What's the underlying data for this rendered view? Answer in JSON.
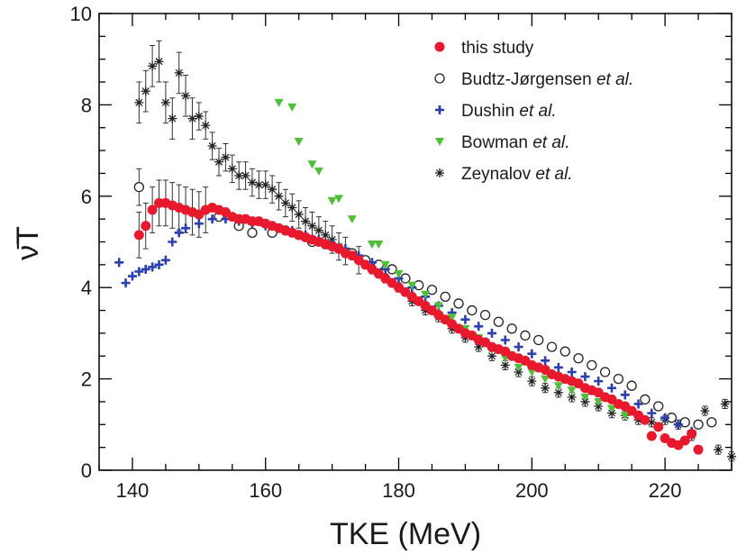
{
  "chart_data": {
    "type": "scatter",
    "xlabel": "TKE (MeV)",
    "ylabel": "ν̄T",
    "xlim": [
      135,
      230
    ],
    "ylim": [
      0,
      10
    ],
    "x_ticks": [
      "140",
      "160",
      "180",
      "200",
      "220"
    ],
    "y_ticks": [
      "0",
      "2",
      "4",
      "6",
      "8",
      "10"
    ],
    "legend_position": "top-right",
    "series": [
      {
        "name": "this study",
        "legend_parts": [
          "this study",
          ""
        ],
        "marker": "filled-circle",
        "color": "#e8192c",
        "x": [
          141,
          142,
          143,
          144,
          145,
          146,
          147,
          148,
          149,
          150,
          151,
          152,
          153,
          154,
          155,
          156,
          157,
          158,
          159,
          160,
          161,
          162,
          163,
          164,
          165,
          166,
          167,
          168,
          169,
          170,
          171,
          172,
          173,
          174,
          175,
          176,
          177,
          178,
          179,
          180,
          181,
          182,
          183,
          184,
          185,
          186,
          187,
          188,
          189,
          190,
          191,
          192,
          193,
          194,
          195,
          196,
          197,
          198,
          199,
          200,
          201,
          202,
          203,
          204,
          205,
          206,
          207,
          208,
          209,
          210,
          211,
          212,
          213,
          214,
          215,
          216,
          217,
          218,
          219,
          220,
          221,
          222,
          223,
          224,
          225
        ],
        "y": [
          5.15,
          5.35,
          5.7,
          5.85,
          5.85,
          5.8,
          5.75,
          5.7,
          5.65,
          5.6,
          5.7,
          5.75,
          5.7,
          5.65,
          5.55,
          5.5,
          5.5,
          5.45,
          5.45,
          5.4,
          5.35,
          5.3,
          5.25,
          5.2,
          5.15,
          5.1,
          5.05,
          5.0,
          4.95,
          4.9,
          4.85,
          4.75,
          4.7,
          4.6,
          4.5,
          4.4,
          4.3,
          4.2,
          4.1,
          4.0,
          3.9,
          3.8,
          3.7,
          3.6,
          3.5,
          3.4,
          3.3,
          3.2,
          3.1,
          3.0,
          2.95,
          2.85,
          2.8,
          2.7,
          2.65,
          2.6,
          2.5,
          2.45,
          2.4,
          2.3,
          2.25,
          2.2,
          2.1,
          2.05,
          2.0,
          1.95,
          1.9,
          1.8,
          1.75,
          1.7,
          1.6,
          1.55,
          1.45,
          1.4,
          1.3,
          1.2,
          1.1,
          0.75,
          0.95,
          0.7,
          0.6,
          0.55,
          0.65,
          0.8,
          0.45
        ]
      },
      {
        "name": "Budtz-Jørgensen et al.",
        "legend_parts": [
          "Budtz-Jørgensen ",
          "et al."
        ],
        "marker": "open-circle",
        "color": "#222222",
        "x": [
          141,
          153,
          156,
          158,
          161,
          163,
          165,
          167,
          169,
          171,
          173,
          175,
          177,
          179,
          181,
          183,
          185,
          187,
          189,
          191,
          193,
          195,
          197,
          199,
          201,
          203,
          205,
          207,
          209,
          211,
          213,
          215,
          217,
          219,
          221,
          223,
          225,
          227
        ],
        "y": [
          6.2,
          5.55,
          5.35,
          5.2,
          5.2,
          5.25,
          5.15,
          5.0,
          4.95,
          4.85,
          4.75,
          4.6,
          4.5,
          4.4,
          4.2,
          4.05,
          3.95,
          3.8,
          3.65,
          3.5,
          3.4,
          3.25,
          3.1,
          2.95,
          2.85,
          2.7,
          2.6,
          2.45,
          2.3,
          2.15,
          2.0,
          1.85,
          1.55,
          1.4,
          1.15,
          1.05,
          1.0,
          1.05
        ]
      },
      {
        "name": "Dushin et al.",
        "legend_parts": [
          "Dushin ",
          "et al."
        ],
        "marker": "plus",
        "color": "#2b3fb0",
        "x": [
          138,
          139,
          140,
          141,
          142,
          143,
          144,
          145,
          146,
          147,
          148,
          150,
          152,
          154,
          156,
          158,
          160,
          162,
          164,
          166,
          168,
          170,
          172,
          174,
          176,
          178,
          180,
          182,
          184,
          186,
          188,
          190,
          192,
          194,
          196,
          198,
          200,
          202,
          204,
          206,
          208,
          210,
          212,
          214,
          216,
          218,
          220,
          222,
          224
        ],
        "y": [
          4.55,
          4.1,
          4.25,
          4.35,
          4.4,
          4.45,
          4.5,
          4.6,
          5.0,
          5.2,
          5.3,
          5.4,
          5.5,
          5.5,
          5.45,
          5.4,
          5.35,
          5.3,
          5.25,
          5.15,
          5.05,
          4.95,
          4.85,
          4.7,
          4.55,
          4.4,
          4.2,
          4.0,
          3.8,
          3.6,
          3.45,
          3.3,
          3.15,
          3.0,
          2.85,
          2.7,
          2.55,
          2.4,
          2.25,
          2.15,
          2.05,
          1.95,
          1.8,
          1.65,
          1.45,
          1.25,
          1.15,
          1.0,
          0.85
        ]
      },
      {
        "name": "Bowman et al.",
        "legend_parts": [
          "Bowman ",
          "et al."
        ],
        "marker": "triangle-down",
        "color": "#4fbf3a",
        "x": [
          162,
          164,
          165,
          167,
          168,
          170,
          171,
          173,
          176,
          177,
          178,
          180,
          182,
          184,
          186,
          188,
          190,
          192,
          194,
          196,
          198,
          200,
          202,
          204,
          206,
          208,
          210,
          212,
          214
        ],
        "y": [
          8.05,
          7.95,
          7.2,
          6.7,
          6.55,
          5.9,
          5.95,
          5.5,
          4.95,
          4.95,
          4.5,
          4.3,
          4.05,
          3.85,
          3.6,
          3.35,
          3.1,
          2.9,
          2.65,
          2.45,
          2.25,
          2.15,
          2.0,
          1.85,
          1.75,
          1.6,
          1.5,
          1.35,
          1.2
        ]
      },
      {
        "name": "Zeynalov et al.",
        "legend_parts": [
          "Zeynalov ",
          "et al."
        ],
        "marker": "asterisk",
        "color": "#222222",
        "x": [
          141,
          142,
          143,
          144,
          145,
          146,
          147,
          148,
          149,
          150,
          151,
          152,
          153,
          154,
          155,
          156,
          157,
          158,
          159,
          160,
          161,
          162,
          163,
          164,
          165,
          166,
          167,
          168,
          169,
          170,
          171,
          172,
          174,
          176,
          178,
          180,
          182,
          184,
          186,
          188,
          190,
          192,
          194,
          196,
          198,
          200,
          202,
          204,
          206,
          208,
          210,
          212,
          214,
          216,
          218,
          220,
          222,
          224,
          226,
          228,
          229,
          230
        ],
        "y": [
          8.05,
          8.3,
          8.85,
          8.95,
          8.05,
          7.7,
          8.7,
          8.2,
          7.7,
          7.75,
          7.55,
          7.1,
          6.75,
          6.85,
          6.6,
          6.45,
          6.45,
          6.3,
          6.25,
          6.25,
          6.15,
          6.0,
          5.85,
          5.75,
          5.6,
          5.45,
          5.35,
          5.25,
          5.15,
          5.05,
          4.9,
          4.8,
          4.6,
          4.4,
          4.2,
          4.0,
          3.7,
          3.5,
          3.35,
          3.1,
          2.9,
          2.7,
          2.5,
          2.3,
          2.15,
          1.95,
          1.8,
          1.7,
          1.6,
          1.5,
          1.4,
          1.25,
          1.2,
          1.1,
          1.05,
          1.1,
          1.0,
          0.75,
          1.3,
          0.45,
          1.45,
          0.3
        ]
      }
    ]
  }
}
